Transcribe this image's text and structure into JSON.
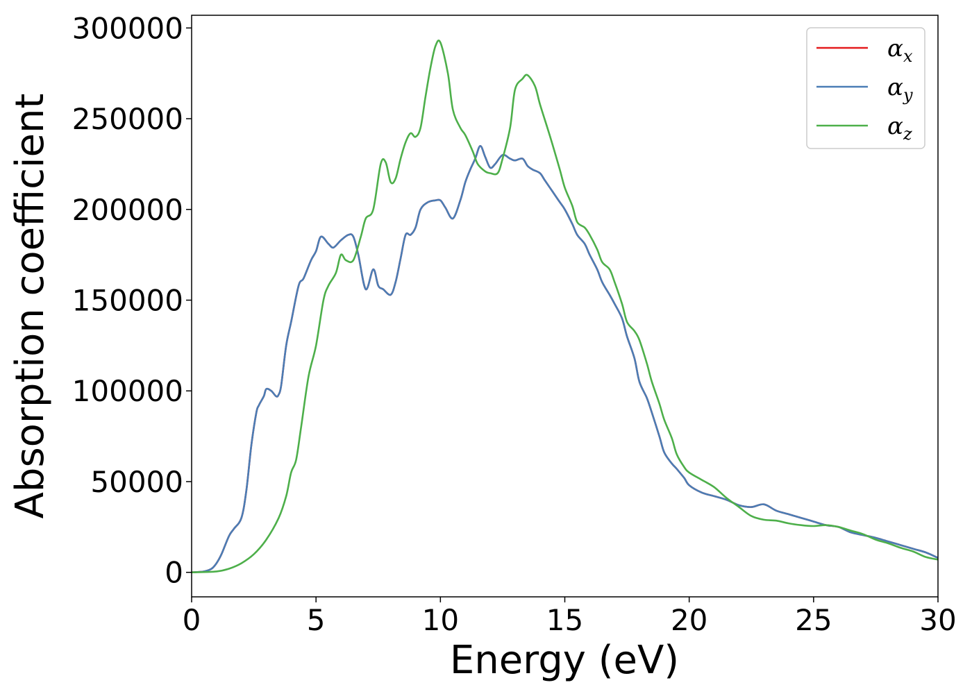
{
  "chart_data": {
    "type": "line",
    "xlabel": "Energy (eV)",
    "ylabel": "Absorption coefficient",
    "xlim": [
      0,
      30
    ],
    "ylim": [
      -13500,
      307000
    ],
    "xticks": [
      0,
      5,
      10,
      15,
      20,
      25,
      30
    ],
    "yticks": [
      0,
      50000,
      100000,
      150000,
      200000,
      250000,
      300000
    ],
    "xtick_labels": [
      "0",
      "5",
      "10",
      "15",
      "20",
      "25",
      "30"
    ],
    "ytick_labels": [
      "0",
      "50000",
      "100000",
      "150000",
      "200000",
      "250000",
      "300000"
    ],
    "grid": false,
    "legend_position": "top-right",
    "series": [
      {
        "name": "α",
        "subscript": "x",
        "color": "#e41a1c",
        "x": [
          0,
          0.5,
          0.8,
          1.0,
          1.2,
          1.5,
          1.7,
          2.0,
          2.2,
          2.4,
          2.6,
          2.7,
          2.9,
          3.0,
          3.2,
          3.4,
          3.5,
          3.6,
          3.8,
          4.0,
          4.3,
          4.5,
          4.8,
          5.0,
          5.2,
          5.5,
          5.7,
          6.0,
          6.3,
          6.5,
          6.7,
          7.0,
          7.3,
          7.5,
          7.7,
          8.0,
          8.2,
          8.4,
          8.6,
          8.8,
          9.0,
          9.2,
          9.5,
          9.8,
          10.0,
          10.2,
          10.5,
          10.8,
          11.0,
          11.2,
          11.4,
          11.6,
          11.8,
          12.0,
          12.2,
          12.5,
          12.8,
          13.0,
          13.3,
          13.5,
          13.7,
          14.0,
          14.2,
          14.5,
          14.8,
          15.0,
          15.3,
          15.5,
          15.8,
          16.0,
          16.3,
          16.5,
          16.8,
          17.0,
          17.3,
          17.5,
          17.8,
          18.0,
          18.3,
          18.5,
          18.8,
          19.0,
          19.3,
          19.5,
          19.8,
          20.0,
          20.5,
          21.0,
          21.5,
          22.0,
          22.5,
          23.0,
          23.5,
          24.0,
          24.5,
          25.0,
          25.5,
          26.0,
          26.5,
          27.0,
          27.5,
          28.0,
          28.5,
          29.0,
          29.5,
          30.0
        ],
        "y": [
          0,
          500,
          2000,
          5000,
          10000,
          20000,
          24000,
          30000,
          45000,
          70000,
          88000,
          92000,
          97000,
          101000,
          100000,
          97000,
          98000,
          103000,
          125000,
          138000,
          158000,
          162000,
          172000,
          177000,
          185000,
          181000,
          179000,
          183000,
          186000,
          185000,
          175000,
          156000,
          167000,
          158000,
          156000,
          153000,
          160000,
          173000,
          186000,
          186000,
          190000,
          200000,
          204000,
          205000,
          205000,
          201000,
          195000,
          205000,
          215000,
          222000,
          228000,
          235000,
          229000,
          223000,
          225000,
          230000,
          228000,
          227000,
          228000,
          224000,
          222000,
          220000,
          216000,
          210000,
          204000,
          200000,
          192000,
          186000,
          181000,
          175000,
          167000,
          160000,
          153000,
          148000,
          140000,
          130000,
          118000,
          105000,
          96000,
          88000,
          75000,
          66000,
          60000,
          57000,
          52000,
          48000,
          44000,
          42000,
          40000,
          37000,
          36000,
          37500,
          34000,
          32000,
          30000,
          28000,
          26000,
          25000,
          22000,
          20500,
          19000,
          17000,
          15000,
          13000,
          11000,
          8000
        ]
      },
      {
        "name": "α",
        "subscript": "y",
        "color": "#4a7db5",
        "x": [
          0,
          0.5,
          0.8,
          1.0,
          1.2,
          1.5,
          1.7,
          2.0,
          2.2,
          2.4,
          2.6,
          2.7,
          2.9,
          3.0,
          3.2,
          3.4,
          3.5,
          3.6,
          3.8,
          4.0,
          4.3,
          4.5,
          4.8,
          5.0,
          5.2,
          5.5,
          5.7,
          6.0,
          6.3,
          6.5,
          6.7,
          7.0,
          7.3,
          7.5,
          7.7,
          8.0,
          8.2,
          8.4,
          8.6,
          8.8,
          9.0,
          9.2,
          9.5,
          9.8,
          10.0,
          10.2,
          10.5,
          10.8,
          11.0,
          11.2,
          11.4,
          11.6,
          11.8,
          12.0,
          12.2,
          12.5,
          12.8,
          13.0,
          13.3,
          13.5,
          13.7,
          14.0,
          14.2,
          14.5,
          14.8,
          15.0,
          15.3,
          15.5,
          15.8,
          16.0,
          16.3,
          16.5,
          16.8,
          17.0,
          17.3,
          17.5,
          17.8,
          18.0,
          18.3,
          18.5,
          18.8,
          19.0,
          19.3,
          19.5,
          19.8,
          20.0,
          20.5,
          21.0,
          21.5,
          22.0,
          22.5,
          23.0,
          23.5,
          24.0,
          24.5,
          25.0,
          25.5,
          26.0,
          26.5,
          27.0,
          27.5,
          28.0,
          28.5,
          29.0,
          29.5,
          30.0
        ],
        "y": [
          0,
          500,
          2000,
          5000,
          10000,
          20000,
          24000,
          30000,
          45000,
          70000,
          88000,
          92000,
          97000,
          101000,
          100000,
          97000,
          98000,
          103000,
          125000,
          138000,
          158000,
          162000,
          172000,
          177000,
          185000,
          181000,
          179000,
          183000,
          186000,
          185000,
          175000,
          156000,
          167000,
          158000,
          156000,
          153000,
          160000,
          173000,
          186000,
          186000,
          190000,
          200000,
          204000,
          205000,
          205000,
          201000,
          195000,
          205000,
          215000,
          222000,
          228000,
          235000,
          229000,
          223000,
          225000,
          230000,
          228000,
          227000,
          228000,
          224000,
          222000,
          220000,
          216000,
          210000,
          204000,
          200000,
          192000,
          186000,
          181000,
          175000,
          167000,
          160000,
          153000,
          148000,
          140000,
          130000,
          118000,
          105000,
          96000,
          88000,
          75000,
          66000,
          60000,
          57000,
          52000,
          48000,
          44000,
          42000,
          40000,
          37000,
          36000,
          37500,
          34000,
          32000,
          30000,
          28000,
          26000,
          25000,
          22000,
          20500,
          19000,
          17000,
          15000,
          13000,
          11000,
          8000
        ]
      },
      {
        "name": "α",
        "subscript": "z",
        "color": "#4daf4a",
        "x": [
          0,
          1.0,
          1.5,
          2.0,
          2.5,
          3.0,
          3.5,
          3.8,
          4.0,
          4.2,
          4.4,
          4.7,
          5.0,
          5.3,
          5.5,
          5.8,
          6.0,
          6.2,
          6.5,
          6.8,
          7.0,
          7.3,
          7.6,
          7.8,
          8.0,
          8.2,
          8.4,
          8.6,
          8.8,
          9.0,
          9.2,
          9.4,
          9.6,
          9.8,
          10.0,
          10.3,
          10.5,
          10.8,
          11.0,
          11.3,
          11.5,
          11.8,
          12.0,
          12.3,
          12.5,
          12.8,
          13.0,
          13.3,
          13.5,
          13.8,
          14.0,
          14.3,
          14.5,
          14.8,
          15.0,
          15.3,
          15.5,
          15.8,
          16.0,
          16.3,
          16.5,
          16.8,
          17.0,
          17.3,
          17.5,
          17.8,
          18.0,
          18.3,
          18.5,
          18.8,
          19.0,
          19.3,
          19.5,
          19.8,
          20.0,
          20.5,
          21.0,
          21.5,
          22.0,
          22.5,
          23.0,
          23.5,
          24.0,
          24.5,
          25.0,
          25.5,
          26.0,
          26.5,
          27.0,
          27.5,
          28.0,
          28.5,
          29.0,
          29.5,
          30.0
        ],
        "y": [
          0,
          500,
          2000,
          5000,
          10000,
          18000,
          30000,
          42000,
          55000,
          62000,
          80000,
          108000,
          125000,
          150000,
          158000,
          165000,
          175000,
          172000,
          172000,
          185000,
          195000,
          200000,
          225000,
          226000,
          215000,
          217000,
          228000,
          237000,
          242000,
          240000,
          245000,
          262000,
          278000,
          290000,
          292000,
          275000,
          255000,
          245000,
          241000,
          232000,
          225000,
          221000,
          220000,
          220000,
          228000,
          245000,
          266000,
          272000,
          274000,
          268000,
          258000,
          245000,
          236000,
          222000,
          212000,
          202000,
          193000,
          190000,
          186000,
          178000,
          171000,
          167000,
          160000,
          148000,
          138000,
          133000,
          128000,
          115000,
          105000,
          93000,
          84000,
          74000,
          65000,
          58000,
          55000,
          51000,
          47000,
          41000,
          36000,
          31000,
          29000,
          28500,
          27000,
          26000,
          25500,
          26000,
          25000,
          23000,
          21000,
          18000,
          16000,
          13500,
          11500,
          8500,
          7000
        ]
      }
    ]
  }
}
